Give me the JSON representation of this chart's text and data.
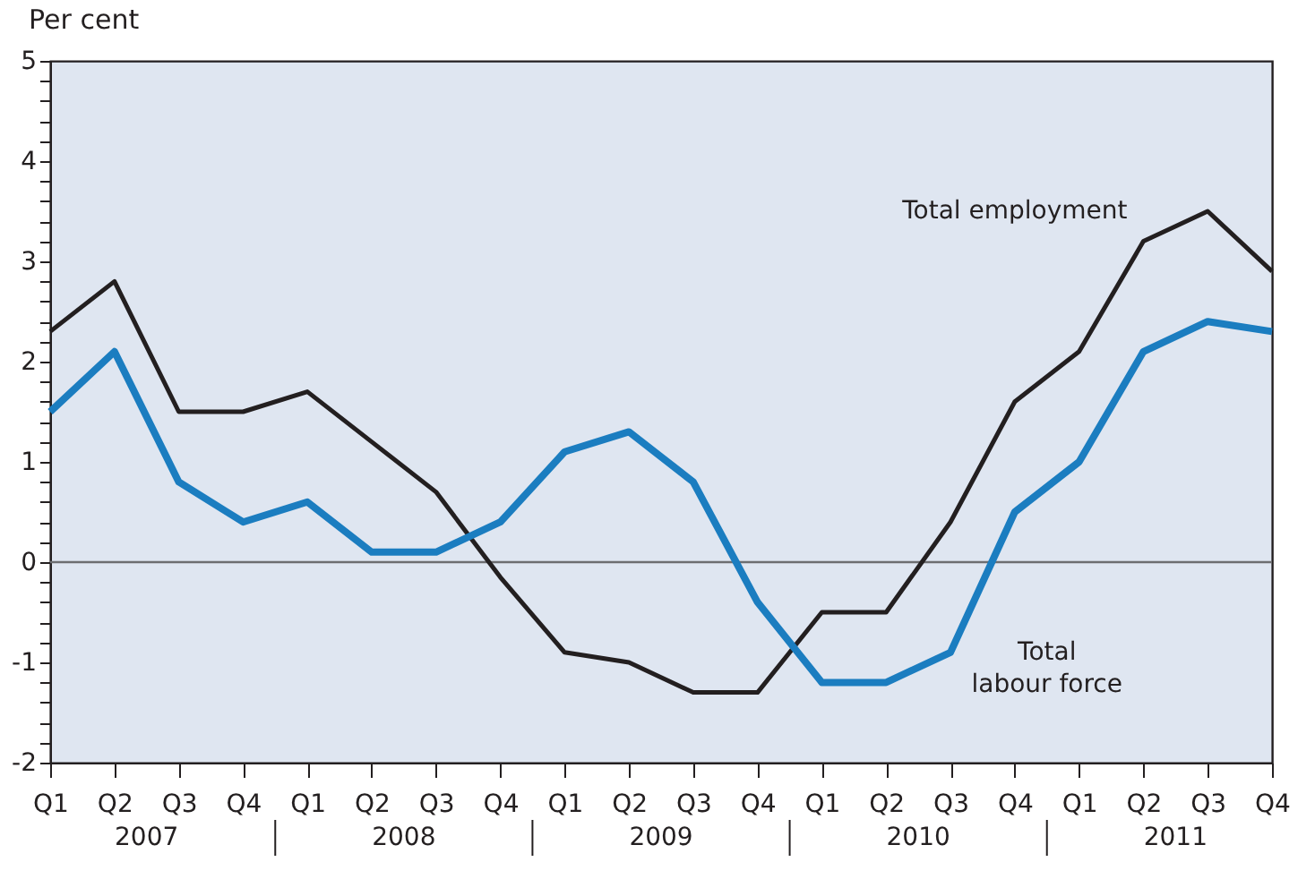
{
  "chart_data": {
    "type": "line",
    "ylabel": "Per cent",
    "categories": [
      "Q1",
      "Q2",
      "Q3",
      "Q4",
      "Q1",
      "Q2",
      "Q3",
      "Q4",
      "Q1",
      "Q2",
      "Q3",
      "Q4",
      "Q1",
      "Q2",
      "Q3",
      "Q4",
      "Q1",
      "Q2",
      "Q3",
      "Q4"
    ],
    "annotations": [
      "2007",
      "2008",
      "2009",
      "2010",
      "2011"
    ],
    "series": [
      {
        "name": "Total employment",
        "color": "#231f20",
        "values": [
          2.3,
          2.8,
          1.5,
          1.5,
          1.7,
          1.2,
          0.7,
          -0.15,
          -0.9,
          -1.0,
          -1.3,
          -1.3,
          -0.5,
          -0.5,
          0.4,
          1.6,
          2.1,
          3.2,
          3.5,
          2.9
        ]
      },
      {
        "name": "Total labour force",
        "color": "#1b7dc0",
        "values": [
          1.5,
          2.1,
          0.8,
          0.4,
          0.6,
          0.1,
          0.1,
          0.4,
          1.1,
          1.3,
          0.8,
          -0.4,
          -1.2,
          -1.2,
          -0.9,
          0.5,
          1.0,
          2.1,
          2.4,
          2.3
        ]
      }
    ],
    "ylim": [
      -2,
      5
    ],
    "yticks": [
      -2,
      {
        "value": -1.8,
        "label": null
      },
      {
        "value": -1.6,
        "label": null
      },
      {
        "value": -1.4,
        "label": null
      },
      {
        "value": -1.2,
        "label": null
      },
      -1,
      {
        "value": -0.8,
        "label": null
      },
      {
        "value": -0.6,
        "label": null
      },
      {
        "value": -0.4,
        "label": null
      },
      {
        "value": -0.2,
        "label": null
      },
      0,
      {
        "value": 0.2,
        "label": null
      },
      {
        "value": 0.4,
        "label": null
      },
      {
        "value": 0.6,
        "label": null
      },
      {
        "value": 0.8,
        "label": null
      },
      1,
      {
        "value": 1.2,
        "label": null
      },
      {
        "value": 1.4,
        "label": null
      },
      {
        "value": 1.6,
        "label": null
      },
      {
        "value": 1.8,
        "label": null
      },
      2,
      {
        "value": 2.2,
        "label": null
      },
      {
        "value": 2.4,
        "label": null
      },
      {
        "value": 2.6,
        "label": null
      },
      {
        "value": 2.8,
        "label": null
      },
      3,
      {
        "value": 3.2,
        "label": null
      },
      {
        "value": 3.4,
        "label": null
      },
      {
        "value": 3.6,
        "label": null
      },
      {
        "value": 3.8,
        "label": null
      },
      4,
      {
        "value": 4.2,
        "label": null
      },
      {
        "value": 4.4,
        "label": null
      },
      {
        "value": 4.6,
        "label": null
      },
      {
        "value": 4.8,
        "label": null
      },
      5
    ],
    "ref_lines": [
      {
        "axis": "y",
        "value": 0,
        "color": "#6d6e71"
      }
    ],
    "marker": "none",
    "line_style": "solid",
    "grid": false
  }
}
